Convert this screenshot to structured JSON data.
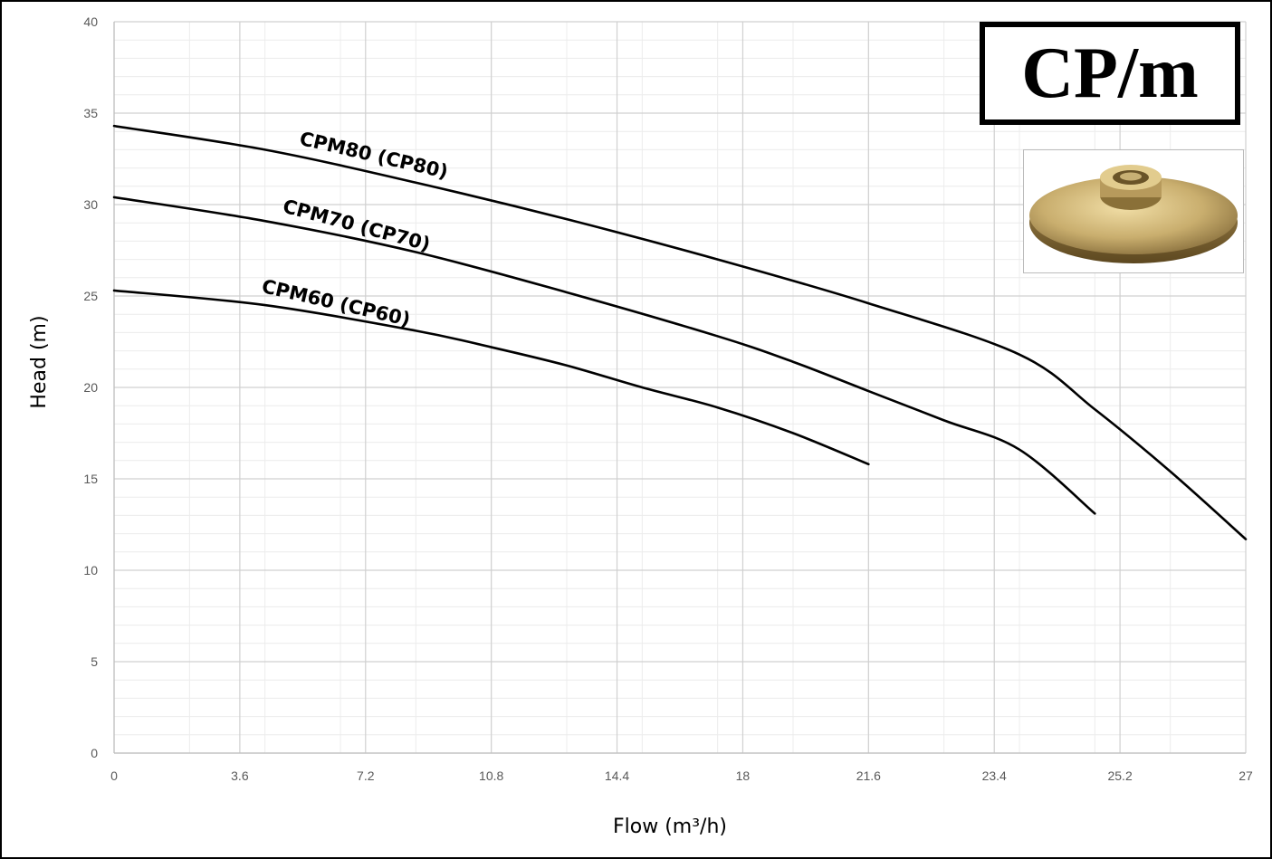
{
  "chart_data": {
    "type": "line",
    "title": "CP/m",
    "xlabel": "Flow (m³/h)",
    "ylabel": "Head (m)",
    "xlim": [
      0,
      27
    ],
    "ylim": [
      0,
      40
    ],
    "x_ticks": [
      "0",
      "3.6",
      "7.2",
      "10.8",
      "14.4",
      "18",
      "21.6",
      "23.4",
      "25.2",
      "27"
    ],
    "y_ticks": [
      "0",
      "5",
      "10",
      "15",
      "20",
      "25",
      "30",
      "35",
      "40"
    ],
    "grid": true,
    "series": [
      {
        "name": "CPM80 (CP80)",
        "x": [
          0,
          3.6,
          7.2,
          10.8,
          14.4,
          18,
          21.6,
          23.4,
          25.2,
          27
        ],
        "y": [
          34.3,
          33.0,
          31.2,
          29.2,
          27.0,
          24.6,
          21.8,
          18.8,
          15.4,
          11.7
        ]
      },
      {
        "name": "CPM70 (CP70)",
        "x": [
          0,
          3.6,
          7.2,
          10.8,
          14.4,
          16.2,
          18,
          19.8,
          21.6,
          23.4
        ],
        "y": [
          30.4,
          29.1,
          27.4,
          25.2,
          22.8,
          21.4,
          19.8,
          18.2,
          16.6,
          13.1
        ]
      },
      {
        "name": "CPM60 (CP60)",
        "x": [
          0,
          3.6,
          7.2,
          9.0,
          10.8,
          12.6,
          14.4,
          16.2,
          18
        ],
        "y": [
          25.3,
          24.5,
          23.1,
          22.2,
          21.2,
          20.0,
          18.9,
          17.5,
          15.8
        ]
      }
    ]
  }
}
